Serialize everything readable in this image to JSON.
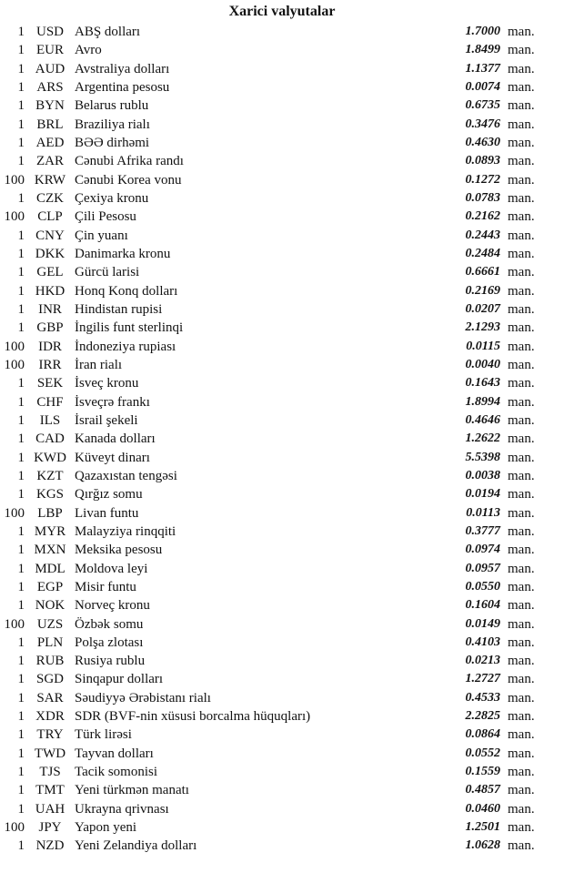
{
  "title": "Xarici valyutalar",
  "unit": "man.",
  "rows": [
    {
      "count": "1",
      "code": "USD",
      "name": "ABŞ dolları",
      "value": "1.7000"
    },
    {
      "count": "1",
      "code": "EUR",
      "name": "Avro",
      "value": "1.8499"
    },
    {
      "count": "1",
      "code": "AUD",
      "name": "Avstraliya dolları",
      "value": "1.1377"
    },
    {
      "count": "1",
      "code": "ARS",
      "name": "Argentina pesosu",
      "value": "0.0074"
    },
    {
      "count": "1",
      "code": "BYN",
      "name": "Belarus rublu",
      "value": "0.6735"
    },
    {
      "count": "1",
      "code": "BRL",
      "name": "Braziliya rialı",
      "value": "0.3476"
    },
    {
      "count": "1",
      "code": "AED",
      "name": "BƏƏ dirhəmi",
      "value": "0.4630"
    },
    {
      "count": "1",
      "code": "ZAR",
      "name": "Cənubi Afrika randı",
      "value": "0.0893"
    },
    {
      "count": "100",
      "code": "KRW",
      "name": "Cənubi Korea vonu",
      "value": "0.1272"
    },
    {
      "count": "1",
      "code": "CZK",
      "name": "Çexiya kronu",
      "value": "0.0783"
    },
    {
      "count": "100",
      "code": "CLP",
      "name": "Çili Pesosu",
      "value": "0.2162"
    },
    {
      "count": "1",
      "code": "CNY",
      "name": "Çin yuanı",
      "value": "0.2443"
    },
    {
      "count": "1",
      "code": "DKK",
      "name": "Danimarka kronu",
      "value": "0.2484"
    },
    {
      "count": "1",
      "code": "GEL",
      "name": "Gürcü larisi",
      "value": "0.6661"
    },
    {
      "count": "1",
      "code": "HKD",
      "name": "Honq Konq dolları",
      "value": "0.2169"
    },
    {
      "count": "1",
      "code": "INR",
      "name": "Hindistan rupisi",
      "value": "0.0207"
    },
    {
      "count": "1",
      "code": "GBP",
      "name": "İngilis funt sterlinqi",
      "value": "2.1293"
    },
    {
      "count": "100",
      "code": "IDR",
      "name": "İndoneziya rupiası",
      "value": "0.0115"
    },
    {
      "count": "100",
      "code": "IRR",
      "name": "İran rialı",
      "value": "0.0040"
    },
    {
      "count": "1",
      "code": "SEK",
      "name": "İsveç kronu",
      "value": "0.1643"
    },
    {
      "count": "1",
      "code": "CHF",
      "name": "İsveçrə frankı",
      "value": "1.8994"
    },
    {
      "count": "1",
      "code": "ILS",
      "name": "İsrail şekeli",
      "value": "0.4646"
    },
    {
      "count": "1",
      "code": "CAD",
      "name": "Kanada dolları",
      "value": "1.2622"
    },
    {
      "count": "1",
      "code": "KWD",
      "name": "Küveyt dinarı",
      "value": "5.5398"
    },
    {
      "count": "1",
      "code": "KZT",
      "name": "Qazaxıstan tengəsi",
      "value": "0.0038"
    },
    {
      "count": "1",
      "code": "KGS",
      "name": "Qırğız somu",
      "value": "0.0194"
    },
    {
      "count": "100",
      "code": "LBP",
      "name": "Livan funtu",
      "value": "0.0113"
    },
    {
      "count": "1",
      "code": "MYR",
      "name": "Malayziya rinqqiti",
      "value": "0.3777"
    },
    {
      "count": "1",
      "code": "MXN",
      "name": "Meksika pesosu",
      "value": "0.0974"
    },
    {
      "count": "1",
      "code": "MDL",
      "name": "Moldova leyi",
      "value": "0.0957"
    },
    {
      "count": "1",
      "code": "EGP",
      "name": "Misir funtu",
      "value": "0.0550"
    },
    {
      "count": "1",
      "code": "NOK",
      "name": "Norveç kronu",
      "value": "0.1604"
    },
    {
      "count": "100",
      "code": "UZS",
      "name": "Özbək somu",
      "value": "0.0149"
    },
    {
      "count": "1",
      "code": "PLN",
      "name": "Polşa zlotası",
      "value": "0.4103"
    },
    {
      "count": "1",
      "code": "RUB",
      "name": "Rusiya rublu",
      "value": "0.0213"
    },
    {
      "count": "1",
      "code": "SGD",
      "name": "Sinqapur dolları",
      "value": "1.2727"
    },
    {
      "count": "1",
      "code": "SAR",
      "name": "Səudiyyə Ərəbistanı rialı",
      "value": "0.4533"
    },
    {
      "count": "1",
      "code": "XDR",
      "name": "SDR (BVF-nin xüsusi borcalma hüquqları)",
      "value": "2.2825"
    },
    {
      "count": "1",
      "code": "TRY",
      "name": "Türk lirəsi",
      "value": "0.0864"
    },
    {
      "count": "1",
      "code": "TWD",
      "name": "Tayvan dolları",
      "value": "0.0552"
    },
    {
      "count": "1",
      "code": "TJS",
      "name": "Tacik somonisi",
      "value": "0.1559"
    },
    {
      "count": "1",
      "code": "TMT",
      "name": "Yeni türkmən manatı",
      "value": "0.4857"
    },
    {
      "count": "1",
      "code": "UAH",
      "name": "Ukrayna qrivnası",
      "value": "0.0460"
    },
    {
      "count": "100",
      "code": "JPY",
      "name": "Yapon yeni",
      "value": "1.2501"
    },
    {
      "count": "1",
      "code": "NZD",
      "name": "Yeni Zelandiya dolları",
      "value": "1.0628"
    }
  ]
}
